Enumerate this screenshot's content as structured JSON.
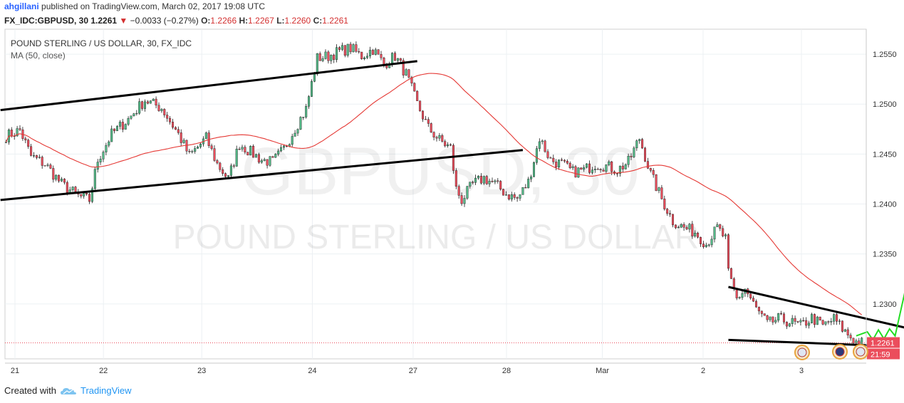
{
  "header": {
    "author": "ahgillani",
    "published": "published on TradingView.com, March 02, 2017 19:08 UTC"
  },
  "symbol_line": {
    "symbol": "FX_IDC:GBPUSD, 30",
    "last": "1.2261",
    "change": "−0.0033 (−0.27%)",
    "o_label": "O:",
    "o_value": "1.2266",
    "h_label": "H:",
    "h_value": "1.2267",
    "l_label": "L:",
    "l_value": "1.2260",
    "c_label": "C:",
    "c_value": "1.2261"
  },
  "legend": {
    "title": "POUND STERLING / US DOLLAR, 30, FX_IDC",
    "indicator": "MA (50, close)"
  },
  "watermark": {
    "ticker": "GBPUSD, 30",
    "name": "POUND STERLING / US DOLLAR"
  },
  "footer": {
    "created_with": "Created with",
    "brand": "TradingView"
  },
  "colors": {
    "up": "#53b987",
    "down": "#eb4d5c",
    "wick": "#1a1a1a",
    "ma": "#e53935",
    "trendline": "#000000",
    "arrow": "#22dd22",
    "price_tag": "#eb4d5c",
    "timer_tag": "#eb4d5c"
  },
  "chart_data": {
    "type": "candlestick",
    "title": "POUND STERLING / US DOLLAR, 30, FX_IDC",
    "ylim": [
      1.2245,
      1.2575
    ],
    "y_ticks": [
      "1.2550",
      "1.2500",
      "1.2450",
      "1.2400",
      "1.2350",
      "1.2300"
    ],
    "x_ticks": [
      "21",
      "22",
      "23",
      "24",
      "27",
      "28",
      "Mar",
      "2",
      "3"
    ],
    "last_price": "1.2261",
    "countdown": "21:59",
    "grid": true,
    "indicator": "MA (50, close)",
    "anchors": [
      [
        0,
        1.2468
      ],
      [
        5,
        1.2474
      ],
      [
        9,
        1.2448
      ],
      [
        14,
        1.244
      ],
      [
        20,
        1.242
      ],
      [
        26,
        1.2408
      ],
      [
        30,
        1.2404
      ],
      [
        33,
        1.2444
      ],
      [
        38,
        1.247
      ],
      [
        44,
        1.2485
      ],
      [
        50,
        1.2504
      ],
      [
        56,
        1.2496
      ],
      [
        62,
        1.247
      ],
      [
        66,
        1.2448
      ],
      [
        72,
        1.2466
      ],
      [
        76,
        1.244
      ],
      [
        80,
        1.2425
      ],
      [
        84,
        1.246
      ],
      [
        88,
        1.2452
      ],
      [
        92,
        1.2444
      ],
      [
        96,
        1.2442
      ],
      [
        100,
        1.2455
      ],
      [
        104,
        1.2476
      ],
      [
        108,
        1.2495
      ],
      [
        112,
        1.2546
      ],
      [
        116,
        1.2548
      ],
      [
        120,
        1.2553
      ],
      [
        124,
        1.2556
      ],
      [
        128,
        1.2548
      ],
      [
        132,
        1.2555
      ],
      [
        136,
        1.254
      ],
      [
        140,
        1.2548
      ],
      [
        144,
        1.253
      ],
      [
        148,
        1.25
      ],
      [
        152,
        1.2476
      ],
      [
        156,
        1.2464
      ],
      [
        160,
        1.2456
      ],
      [
        162,
        1.2415
      ],
      [
        164,
        1.2404
      ],
      [
        168,
        1.242
      ],
      [
        172,
        1.2426
      ],
      [
        176,
        1.242
      ],
      [
        180,
        1.241
      ],
      [
        184,
        1.2405
      ],
      [
        188,
        1.2422
      ],
      [
        192,
        1.2466
      ],
      [
        196,
        1.2444
      ],
      [
        200,
        1.244
      ],
      [
        204,
        1.2432
      ],
      [
        208,
        1.2434
      ],
      [
        212,
        1.244
      ],
      [
        216,
        1.2438
      ],
      [
        220,
        1.2434
      ],
      [
        224,
        1.2442
      ],
      [
        228,
        1.2466
      ],
      [
        232,
        1.243
      ],
      [
        236,
        1.2405
      ],
      [
        240,
        1.2383
      ],
      [
        244,
        1.2376
      ],
      [
        248,
        1.2372
      ],
      [
        252,
        1.236
      ],
      [
        256,
        1.2376
      ],
      [
        259,
        1.2365
      ],
      [
        260,
        1.233
      ],
      [
        263,
        1.2305
      ],
      [
        266,
        1.2315
      ],
      [
        270,
        1.2295
      ],
      [
        274,
        1.228
      ],
      [
        278,
        1.2285
      ],
      [
        282,
        1.2282
      ],
      [
        286,
        1.2278
      ],
      [
        290,
        1.2286
      ],
      [
        294,
        1.2278
      ],
      [
        298,
        1.2285
      ],
      [
        302,
        1.2272
      ],
      [
        306,
        1.2262
      ],
      [
        308,
        1.2261
      ]
    ],
    "trendlines": [
      {
        "from": [
          -2,
          1.2494
        ],
        "to": [
          148,
          1.2543
        ]
      },
      {
        "from": [
          -2,
          1.2404
        ],
        "to": [
          186,
          1.2454
        ]
      },
      {
        "from": [
          260,
          1.2317
        ],
        "to": [
          324,
          1.2276
        ]
      },
      {
        "from": [
          260,
          1.2264
        ],
        "to": [
          316,
          1.2258
        ]
      }
    ],
    "projection": [
      [
        306,
        1.2268
      ],
      [
        310,
        1.2272
      ],
      [
        312,
        1.2264
      ],
      [
        314,
        1.2274
      ],
      [
        316,
        1.2265
      ],
      [
        318,
        1.2275
      ],
      [
        320,
        1.2268
      ],
      [
        331,
        1.2405
      ]
    ]
  }
}
